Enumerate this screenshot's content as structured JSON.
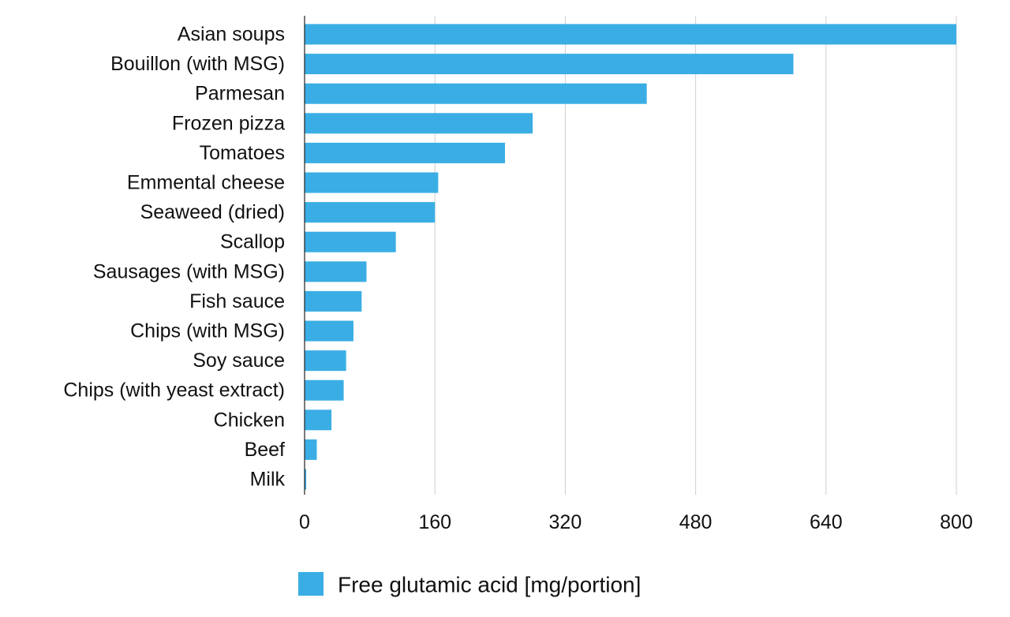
{
  "chart_data": {
    "type": "bar",
    "orientation": "horizontal",
    "title": "",
    "xlabel": "",
    "ylabel": "",
    "categories": [
      "Asian soups",
      "Bouillon (with MSG)",
      "Parmesan",
      "Frozen pizza",
      "Tomatoes",
      "Emmental cheese",
      "Seaweed (dried)",
      "Scallop",
      "Sausages (with MSG)",
      "Fish sauce",
      "Chips (with MSG)",
      "Soy sauce",
      "Chips (with yeast extract)",
      "Chicken",
      "Beef",
      "Milk"
    ],
    "series": [
      {
        "name": "Free glutamic acid [mg/portion]",
        "color": "#3aaee4",
        "values": [
          800,
          600,
          420,
          280,
          246,
          164,
          160,
          112,
          76,
          70,
          60,
          51,
          48,
          33,
          15,
          2
        ]
      }
    ],
    "xlim": [
      0,
      800
    ],
    "xticks": [
      0,
      160,
      320,
      480,
      640,
      800
    ],
    "grid": "vertical",
    "legend": "bottom-center"
  }
}
